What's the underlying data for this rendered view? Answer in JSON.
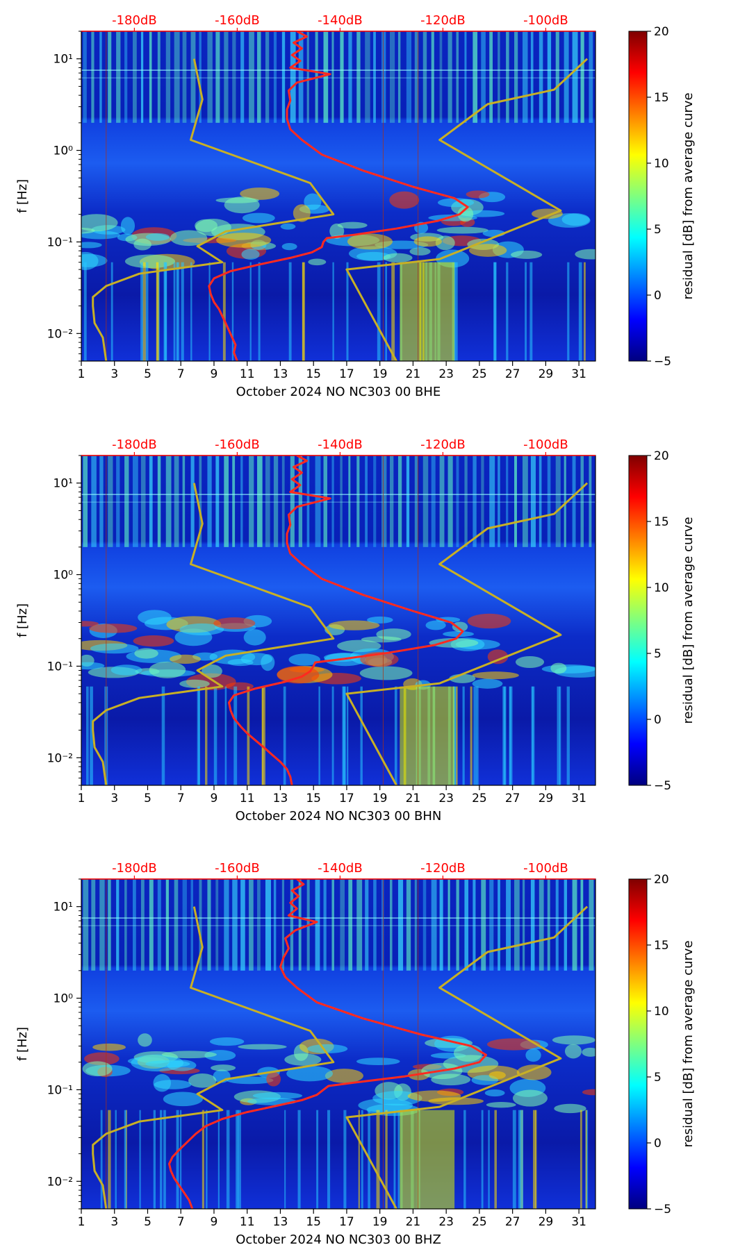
{
  "colors": {
    "db_axis": "#ff0000",
    "noise_curve": "#ff2a1f",
    "model_curve": "#c8b025",
    "colorbar_stops": [
      "#00007f",
      "#0000ff",
      "#007fff",
      "#00ffff",
      "#7fff7f",
      "#ffff00",
      "#ff7f00",
      "#ff0000",
      "#7f0000"
    ]
  },
  "chart_data": [
    {
      "type": "heatmap",
      "title": "",
      "xlabel": "October 2024 NO NC303 00 BHE",
      "ylabel": "f [Hz]",
      "x_ticks": [
        "1",
        "3",
        "5",
        "7",
        "9",
        "11",
        "13",
        "15",
        "17",
        "19",
        "21",
        "23",
        "25",
        "27",
        "29",
        "31"
      ],
      "x_range": [
        1,
        32
      ],
      "y_ticks": [
        "10⁻²",
        "10⁻¹",
        "10⁰",
        "10¹"
      ],
      "y_range_hz": [
        0.005,
        20
      ],
      "top_axis_ticks": [
        "-180dB",
        "-160dB",
        "-140dB",
        "-120dB",
        "-100dB"
      ],
      "top_axis_positions_day": [
        4.2,
        10.4,
        16.6,
        22.8,
        29.0
      ],
      "colorbar": {
        "label": "residual [dB] from average curve",
        "ticks": [
          "−5",
          "0",
          "5",
          "10",
          "15",
          "20"
        ],
        "range": [
          -5,
          20
        ]
      },
      "series": [
        {
          "name": "noise-curve",
          "x": [
            10.4,
            10.2,
            10.3,
            10.1,
            9.9,
            9.7,
            9.5,
            9.3,
            9.0,
            8.8,
            8.7,
            9.0,
            10.0,
            11.8,
            13.6,
            14.9,
            15.5,
            15.6,
            15.8,
            17.5,
            20.0,
            22.5,
            23.8,
            24.3,
            23.5,
            21.0,
            18.0,
            15.5,
            14.3,
            13.6,
            13.4,
            13.4,
            13.6,
            13.5,
            14.0,
            16.0,
            13.6,
            14.2,
            13.7,
            14.3,
            13.8,
            14.6,
            14.0
          ],
          "f_hz": [
            0.005,
            0.0062,
            0.0075,
            0.009,
            0.0108,
            0.013,
            0.0155,
            0.0185,
            0.022,
            0.027,
            0.033,
            0.04,
            0.048,
            0.057,
            0.067,
            0.077,
            0.088,
            0.1,
            0.11,
            0.12,
            0.14,
            0.17,
            0.2,
            0.24,
            0.3,
            0.4,
            0.6,
            0.9,
            1.3,
            1.7,
            2.2,
            2.8,
            3.5,
            4.5,
            5.5,
            6.8,
            8.0,
            9.5,
            11.0,
            13.0,
            15.0,
            17.5,
            20.0
          ]
        },
        {
          "name": "model-curve",
          "x": [
            2.5,
            2.3,
            1.8,
            1.7,
            1.7,
            2.5,
            4.5,
            9.5,
            8.0,
            9.7,
            16.2,
            14.8,
            7.6,
            8.3,
            7.8
          ],
          "f_hz": [
            0.005,
            0.009,
            0.013,
            0.02,
            0.025,
            0.033,
            0.045,
            0.06,
            0.09,
            0.13,
            0.2,
            0.44,
            1.3,
            3.6,
            10.0
          ]
        },
        {
          "name": "model-curve-2",
          "x": [
            20.0,
            17.0,
            22.6,
            29.9,
            22.6,
            25.5,
            29.5,
            31.5
          ],
          "f_hz": [
            0.005,
            0.05,
            0.065,
            0.22,
            1.3,
            3.2,
            4.6,
            10.0
          ]
        }
      ]
    },
    {
      "type": "heatmap",
      "title": "",
      "xlabel": "October 2024 NO NC303 00 BHN",
      "ylabel": "f [Hz]",
      "x_ticks": [
        "1",
        "3",
        "5",
        "7",
        "9",
        "11",
        "13",
        "15",
        "17",
        "19",
        "21",
        "23",
        "25",
        "27",
        "29",
        "31"
      ],
      "x_range": [
        1,
        32
      ],
      "y_ticks": [
        "10⁻²",
        "10⁻¹",
        "10⁰",
        "10¹"
      ],
      "y_range_hz": [
        0.005,
        20
      ],
      "top_axis_ticks": [
        "-180dB",
        "-160dB",
        "-140dB",
        "-120dB",
        "-100dB"
      ],
      "top_axis_positions_day": [
        4.2,
        10.4,
        16.6,
        22.8,
        29.0
      ],
      "colorbar": {
        "label": "residual [dB] from average curve",
        "ticks": [
          "−5",
          "0",
          "5",
          "10",
          "15",
          "20"
        ],
        "range": [
          -5,
          20
        ]
      },
      "series": [
        {
          "name": "noise-curve",
          "x": [
            13.7,
            13.6,
            13.4,
            13.0,
            12.5,
            12.0,
            11.5,
            11.0,
            10.6,
            10.2,
            10.0,
            9.9,
            10.2,
            11.5,
            13.2,
            14.3,
            14.8,
            15.0,
            15.1,
            16.8,
            19.5,
            22.3,
            23.6,
            24.0,
            23.3,
            21.0,
            18.0,
            15.5,
            14.3,
            13.6,
            13.4,
            13.4,
            13.6,
            13.5,
            14.0,
            16.0,
            13.6,
            14.2,
            13.7,
            14.3,
            13.8,
            14.6,
            14.0
          ],
          "f_hz": [
            0.005,
            0.0062,
            0.0075,
            0.009,
            0.0108,
            0.013,
            0.0155,
            0.0185,
            0.022,
            0.027,
            0.033,
            0.04,
            0.048,
            0.057,
            0.067,
            0.077,
            0.088,
            0.1,
            0.11,
            0.12,
            0.14,
            0.17,
            0.2,
            0.24,
            0.3,
            0.4,
            0.6,
            0.9,
            1.3,
            1.7,
            2.2,
            2.8,
            3.5,
            4.5,
            5.5,
            6.8,
            8.0,
            9.5,
            11.0,
            13.0,
            15.0,
            17.5,
            20.0
          ]
        },
        {
          "name": "model-curve",
          "x": [
            2.5,
            2.3,
            1.8,
            1.7,
            1.7,
            2.5,
            4.5,
            9.5,
            8.0,
            9.7,
            16.2,
            14.8,
            7.6,
            8.3,
            7.8
          ],
          "f_hz": [
            0.005,
            0.009,
            0.013,
            0.02,
            0.025,
            0.033,
            0.045,
            0.06,
            0.09,
            0.13,
            0.2,
            0.44,
            1.3,
            3.6,
            10.0
          ]
        },
        {
          "name": "model-curve-2",
          "x": [
            20.0,
            17.0,
            22.6,
            29.9,
            22.6,
            25.5,
            29.5,
            31.5
          ],
          "f_hz": [
            0.005,
            0.05,
            0.065,
            0.22,
            1.3,
            3.2,
            4.6,
            10.0
          ]
        }
      ]
    },
    {
      "type": "heatmap",
      "title": "",
      "xlabel": "October 2024 NO NC303 00 BHZ",
      "ylabel": "f [Hz]",
      "x_ticks": [
        "1",
        "3",
        "5",
        "7",
        "9",
        "11",
        "13",
        "15",
        "17",
        "19",
        "21",
        "23",
        "25",
        "27",
        "29",
        "31"
      ],
      "x_range": [
        1,
        32
      ],
      "y_ticks": [
        "10⁻²",
        "10⁻¹",
        "10⁰",
        "10¹"
      ],
      "y_range_hz": [
        0.005,
        20
      ],
      "top_axis_ticks": [
        "-180dB",
        "-160dB",
        "-140dB",
        "-120dB",
        "-100dB"
      ],
      "top_axis_positions_day": [
        4.2,
        10.4,
        16.6,
        22.8,
        29.0
      ],
      "colorbar": {
        "label": "residual [dB] from average curve",
        "ticks": [
          "−5",
          "0",
          "5",
          "10",
          "15",
          "20"
        ],
        "range": [
          -5,
          20
        ]
      },
      "series": [
        {
          "name": "noise-curve",
          "x": [
            7.7,
            7.5,
            7.2,
            6.9,
            6.6,
            6.4,
            6.3,
            6.5,
            6.9,
            7.4,
            7.9,
            8.5,
            9.5,
            11.0,
            12.8,
            14.3,
            15.2,
            15.6,
            15.9,
            17.5,
            20.5,
            23.5,
            25.0,
            25.4,
            24.5,
            21.5,
            18.0,
            15.2,
            14.0,
            13.3,
            13.0,
            13.2,
            13.5,
            13.3,
            13.9,
            15.2,
            13.5,
            14.0,
            13.6,
            14.1,
            13.7,
            14.4,
            14.0
          ],
          "f_hz": [
            0.005,
            0.0062,
            0.0075,
            0.009,
            0.0108,
            0.013,
            0.0155,
            0.0185,
            0.022,
            0.027,
            0.033,
            0.04,
            0.048,
            0.057,
            0.067,
            0.077,
            0.088,
            0.1,
            0.11,
            0.12,
            0.14,
            0.17,
            0.2,
            0.24,
            0.3,
            0.4,
            0.6,
            0.9,
            1.3,
            1.7,
            2.2,
            2.8,
            3.5,
            4.5,
            5.5,
            6.8,
            8.0,
            9.5,
            11.0,
            13.0,
            15.0,
            17.5,
            20.0
          ]
        },
        {
          "name": "model-curve",
          "x": [
            2.5,
            2.3,
            1.8,
            1.7,
            1.7,
            2.5,
            4.5,
            9.5,
            8.0,
            9.7,
            16.2,
            14.8,
            7.6,
            8.3,
            7.8
          ],
          "f_hz": [
            0.005,
            0.009,
            0.013,
            0.02,
            0.025,
            0.033,
            0.045,
            0.06,
            0.09,
            0.13,
            0.2,
            0.44,
            1.3,
            3.6,
            10.0
          ]
        },
        {
          "name": "model-curve-2",
          "x": [
            20.0,
            17.0,
            22.6,
            29.9,
            22.6,
            25.5,
            29.5,
            31.5
          ],
          "f_hz": [
            0.005,
            0.05,
            0.065,
            0.22,
            1.3,
            3.2,
            4.6,
            10.0
          ]
        }
      ]
    }
  ]
}
